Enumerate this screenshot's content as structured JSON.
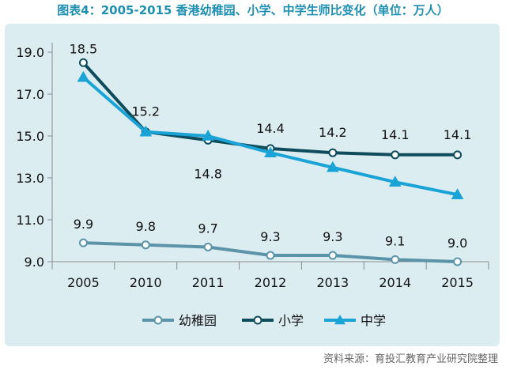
{
  "title": "图表4：2005-2015 香港幼稚园、小学、中学生师比变化（单位：万人）",
  "source": "资料来源：育投汇教育产业研究院整理",
  "chart_data": {
    "type": "line",
    "categories": [
      "2005",
      "2010",
      "2011",
      "2012",
      "2013",
      "2014",
      "2015"
    ],
    "ylim": [
      9.0,
      19.0
    ],
    "yticks": [
      "9.0",
      "11.0",
      "13.0",
      "15.0",
      "17.0",
      "19.0"
    ],
    "grid": false,
    "legend_position": "bottom",
    "series": [
      {
        "name": "幼稚园",
        "marker": "circle",
        "color": "#5b93a8",
        "values": [
          9.9,
          9.8,
          9.7,
          9.3,
          9.3,
          9.1,
          9.0
        ],
        "labels": [
          "9.9",
          "9.8",
          "9.7",
          "9.3",
          "9.3",
          "9.1",
          "9.0"
        ]
      },
      {
        "name": "小学",
        "marker": "circle",
        "color": "#0e4c5c",
        "values": [
          18.5,
          15.2,
          14.8,
          14.4,
          14.2,
          14.1,
          14.1
        ],
        "labels": [
          "18.5",
          "15.2",
          "14.8",
          "14.4",
          "14.2",
          "14.1",
          "14.1"
        ]
      },
      {
        "name": "中学",
        "marker": "triangle",
        "color": "#1aa3d6",
        "values": [
          17.8,
          15.2,
          15.0,
          14.2,
          13.5,
          12.8,
          12.2
        ],
        "labels": []
      }
    ]
  }
}
